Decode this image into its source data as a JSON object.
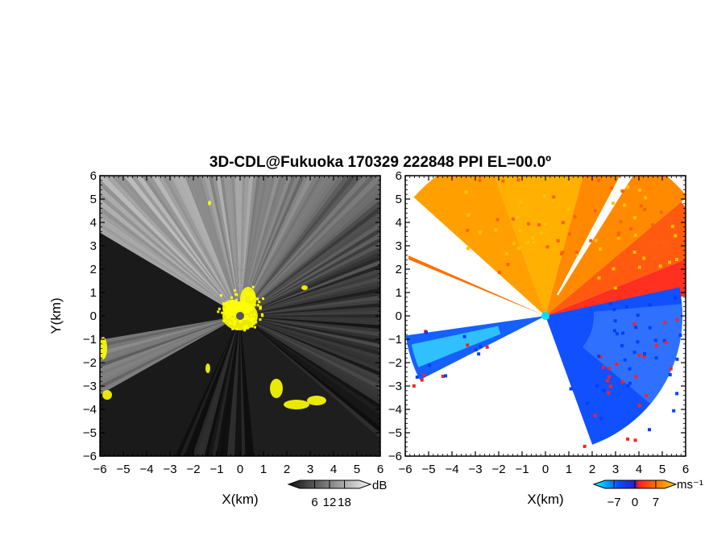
{
  "title": "3D-CDL@Fukuoka 170329 222848 PPI EL=00.0º",
  "chart_data": [
    {
      "type": "heatmap",
      "panel": "reflectivity",
      "xlabel": "X(km)",
      "ylabel": "Y(km)",
      "xlim": [
        -6,
        6
      ],
      "ylim": [
        -6,
        6
      ],
      "ticks": [
        "−6",
        "−5",
        "−4",
        "−3",
        "−2",
        "−1",
        "0",
        "1",
        "2",
        "3",
        "4",
        "5",
        "6"
      ],
      "colorbar": {
        "unit": "dB",
        "tick_labels": [
          "6",
          "12",
          "18"
        ],
        "range": [
          0,
          24
        ],
        "colormap": "grayscale"
      },
      "highlight_color": "#ffff00",
      "background_color": "#1a1a1a",
      "radar_center": [
        0,
        0
      ],
      "blocked_sectors_deg": [
        [
          -150,
          -115
        ],
        [
          150,
          180
        ],
        [
          -180,
          -171
        ],
        [
          158,
          168
        ]
      ]
    },
    {
      "type": "heatmap",
      "panel": "doppler_velocity",
      "xlabel": "X(km)",
      "xlim": [
        -6,
        6
      ],
      "ylim": [
        -6,
        6
      ],
      "ticks": [
        "−6",
        "−5",
        "−4",
        "−3",
        "−2",
        "−1",
        "0",
        "1",
        "2",
        "3",
        "4",
        "5",
        "6"
      ],
      "colorbar": {
        "unit": "ms⁻¹",
        "tick_labels": [
          "−7",
          "0",
          "7"
        ],
        "range": [
          -10,
          10
        ],
        "colormap": [
          "#00ffff",
          "#0050ff",
          "#ff2020",
          "#ff8000",
          "#ffd000"
        ]
      },
      "radar_center": [
        0,
        0
      ],
      "center_color": "#00e0ff"
    }
  ]
}
